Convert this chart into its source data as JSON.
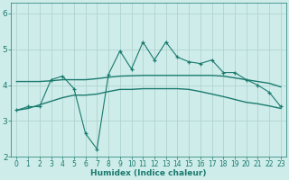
{
  "xlabel": "Humidex (Indice chaleur)",
  "x_values": [
    0,
    1,
    2,
    3,
    4,
    5,
    6,
    7,
    8,
    9,
    10,
    11,
    12,
    13,
    14,
    15,
    16,
    17,
    18,
    19,
    20,
    21,
    22,
    23
  ],
  "line1_y": [
    3.3,
    3.4,
    3.4,
    4.15,
    4.25,
    3.9,
    2.65,
    2.22,
    4.3,
    4.95,
    4.45,
    5.2,
    4.7,
    5.2,
    4.78,
    4.65,
    4.6,
    4.7,
    4.35,
    4.35,
    4.15,
    4.0,
    3.8,
    3.4
  ],
  "line2_y": [
    4.1,
    4.1,
    4.1,
    4.12,
    4.15,
    4.15,
    4.15,
    4.18,
    4.22,
    4.25,
    4.26,
    4.27,
    4.27,
    4.27,
    4.27,
    4.27,
    4.27,
    4.27,
    4.25,
    4.2,
    4.15,
    4.1,
    4.05,
    3.95
  ],
  "line3_y": [
    3.3,
    3.35,
    3.45,
    3.55,
    3.65,
    3.72,
    3.72,
    3.75,
    3.82,
    3.88,
    3.88,
    3.9,
    3.9,
    3.9,
    3.9,
    3.88,
    3.82,
    3.75,
    3.68,
    3.6,
    3.52,
    3.48,
    3.42,
    3.35
  ],
  "color": "#1a7a6e",
  "bg_color": "#ceecea",
  "grid_color": "#aed4d0",
  "ylim": [
    2.0,
    6.3
  ],
  "xlim": [
    -0.5,
    23.5
  ],
  "yticks": [
    2,
    3,
    4,
    5,
    6
  ],
  "xticks": [
    0,
    1,
    2,
    3,
    4,
    5,
    6,
    7,
    8,
    9,
    10,
    11,
    12,
    13,
    14,
    15,
    16,
    17,
    18,
    19,
    20,
    21,
    22,
    23
  ]
}
